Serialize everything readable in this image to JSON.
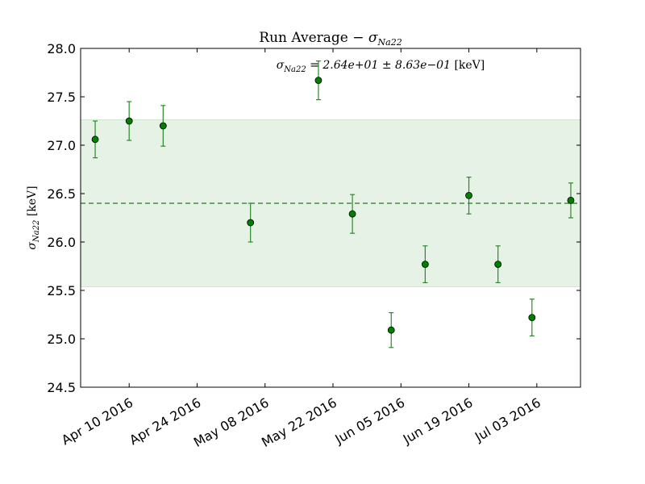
{
  "chart_data": {
    "type": "scatter",
    "title": "Run Average − σNa22",
    "ylabel": "σNa22 [keV]",
    "xlabel": "",
    "annotation": "σNa22 = 2.64e+01 ± 8.63e−01 [keV]",
    "xlim": [
      "2016-03-31",
      "2016-07-12"
    ],
    "ylim": [
      24.5,
      28.0
    ],
    "yticks": [
      24.5,
      25.0,
      25.5,
      26.0,
      26.5,
      27.0,
      27.5,
      28.0
    ],
    "ytick_labels": [
      "24.5",
      "25.0",
      "25.5",
      "26.0",
      "26.5",
      "27.0",
      "27.5",
      "28.0"
    ],
    "xticks": [
      "2016-04-10",
      "2016-04-24",
      "2016-05-08",
      "2016-05-22",
      "2016-06-05",
      "2016-06-19",
      "2016-07-03"
    ],
    "xtick_labels": [
      "Apr 10 2016",
      "Apr 24 2016",
      "May 08 2016",
      "May 22 2016",
      "Jun 05 2016",
      "Jun 19 2016",
      "Jul 03 2016"
    ],
    "grid": false,
    "mean": 26.4,
    "band": [
      25.537,
      27.263
    ],
    "series": [
      {
        "x": [
          "2016-04-03",
          "2016-04-10",
          "2016-04-17",
          "2016-05-05",
          "2016-05-19",
          "2016-05-26",
          "2016-06-03",
          "2016-06-10",
          "2016-06-19",
          "2016-06-25",
          "2016-07-02",
          "2016-07-10"
        ],
        "y": [
          27.06,
          27.25,
          27.2,
          26.2,
          27.67,
          26.29,
          25.09,
          25.77,
          26.48,
          25.77,
          25.22,
          26.43
        ],
        "yerr": [
          0.19,
          0.2,
          0.21,
          0.2,
          0.2,
          0.2,
          0.18,
          0.19,
          0.19,
          0.19,
          0.19,
          0.18
        ]
      }
    ],
    "colors": {
      "points": "#007f00",
      "errorbars": "#2a8a2a",
      "band_fill": "#e5f2e5",
      "band_edge": "#cfe6cf",
      "mean_line": "#1a7f1a"
    }
  }
}
